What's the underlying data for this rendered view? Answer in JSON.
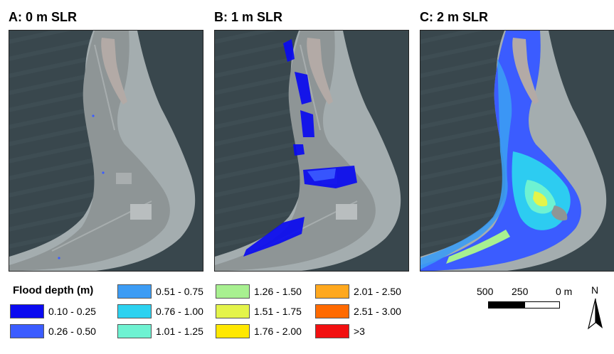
{
  "panels": [
    {
      "title": "A: 0 m SLR"
    },
    {
      "title": "B: 1 m SLR"
    },
    {
      "title": "C: 2 m SLR"
    }
  ],
  "legend": {
    "title": "Flood depth (m)",
    "items": [
      {
        "label": "0.10 - 0.25",
        "color": "#0a0af0"
      },
      {
        "label": "0.26 - 0.50",
        "color": "#3b5cff"
      },
      {
        "label": "0.51 - 0.75",
        "color": "#3c9cf4"
      },
      {
        "label": "0.76 - 1.00",
        "color": "#2cd2f0"
      },
      {
        "label": "1.01 - 1.25",
        "color": "#6ef2d2"
      },
      {
        "label": "1.26 - 1.50",
        "color": "#a8f090"
      },
      {
        "label": "1.51 - 1.75",
        "color": "#e4f44a"
      },
      {
        "label": "1.76 - 2.00",
        "color": "#ffe800"
      },
      {
        "label": "2.01 - 2.50",
        "color": "#ffa81e"
      },
      {
        "label": "2.51 - 3.00",
        "color": "#ff6a00"
      },
      {
        "label": ">3",
        "color": "#f21010"
      }
    ]
  },
  "scale_bar": {
    "labels": [
      "500",
      "250",
      "0 m"
    ]
  },
  "north_arrow": {
    "label": "N",
    "icon": "north-arrow-icon"
  },
  "colors": {
    "ocean": "#39474d",
    "land": "#8e9596",
    "reef": "#c8cfd0",
    "lagoon": "#b3aaa6"
  }
}
